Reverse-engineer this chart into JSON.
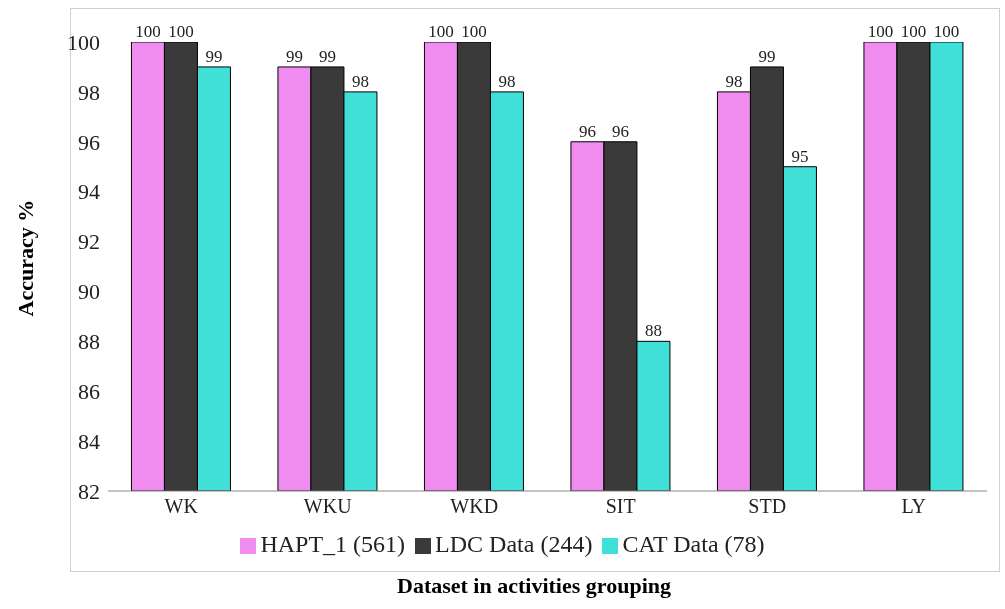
{
  "chart_data": {
    "type": "bar",
    "xlabel": "Dataset in activities grouping",
    "ylabel": "Accuracy %",
    "categories": [
      "WK",
      "WKU",
      "WKD",
      "SIT",
      "STD",
      "LY"
    ],
    "series": [
      {
        "name": "HAPT_1 (561)",
        "color": "#f08cf0",
        "values": [
          100,
          99,
          100,
          96,
          98,
          100
        ]
      },
      {
        "name": "LDC Data (244)",
        "color": "#3a3a3a",
        "values": [
          100,
          99,
          100,
          96,
          99,
          100
        ]
      },
      {
        "name": "CAT Data (78)",
        "color": "#40e0d8",
        "values": [
          99,
          98,
          98,
          88,
          95,
          100
        ]
      }
    ],
    "ylim": [
      82,
      100
    ],
    "yticks": [
      82,
      84,
      86,
      88,
      90,
      92,
      94,
      96,
      98,
      100
    ],
    "grid": false,
    "legend": "bottom",
    "data_labels": true
  }
}
